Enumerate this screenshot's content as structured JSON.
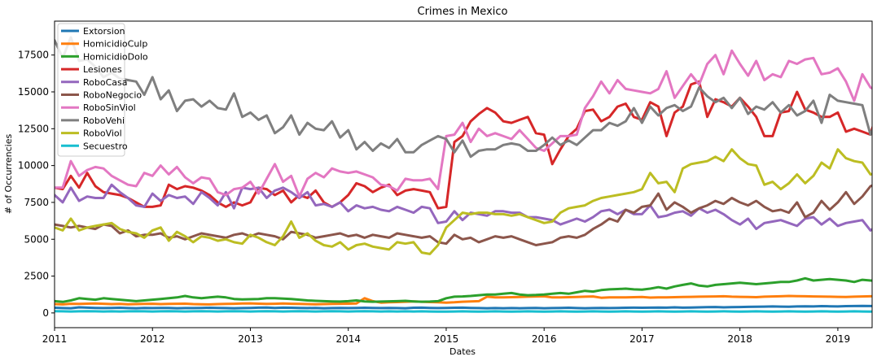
{
  "chart_data": {
    "type": "line",
    "title": "Crimes in Mexico",
    "xlabel": "Dates",
    "ylabel": "# of Occurrencies",
    "x_start": 2011.0,
    "x_step_months": 1,
    "xlim": [
      2011.0,
      2019.35
    ],
    "ylim": [
      -1000,
      19800
    ],
    "xticks": [
      2011,
      2012,
      2013,
      2014,
      2015,
      2016,
      2017,
      2018,
      2019
    ],
    "xtick_labels": [
      "2011",
      "2012",
      "2013",
      "2014",
      "2015",
      "2016",
      "2017",
      "2018",
      "2019"
    ],
    "yticks": [
      0,
      2500,
      5000,
      7500,
      10000,
      12500,
      15000,
      17500
    ],
    "ytick_labels": [
      "0",
      "2500",
      "5000",
      "7500",
      "10000",
      "12500",
      "15000",
      "17500"
    ],
    "grid": false,
    "legend_position": "top-left",
    "series": [
      {
        "name": "Extorsion",
        "color": "#1f77b4",
        "values": [
          350,
          330,
          320,
          380,
          360,
          340,
          330,
          340,
          350,
          330,
          320,
          340,
          330,
          340,
          340,
          320,
          330,
          330,
          340,
          350,
          340,
          330,
          320,
          330,
          340,
          360,
          370,
          340,
          360,
          350,
          340,
          330,
          340,
          320,
          330,
          340,
          330,
          340,
          350,
          340,
          330,
          340,
          330,
          320,
          350,
          360,
          340,
          330,
          340,
          350,
          360,
          340,
          330,
          320,
          330,
          320,
          330,
          320,
          330,
          340,
          320,
          330,
          340,
          350,
          330,
          320,
          330,
          340,
          330,
          340,
          350,
          360,
          350,
          360,
          370,
          360,
          380,
          360,
          370,
          380,
          390,
          400,
          380,
          390,
          400,
          410,
          420,
          430,
          440,
          430,
          420,
          440,
          450,
          440,
          460,
          450,
          440,
          460,
          470,
          480,
          470,
          480,
          520,
          560,
          540,
          550,
          530,
          580,
          570,
          560
        ]
      },
      {
        "name": "HomicidioCulp",
        "color": "#ff7f0e",
        "values": [
          600,
          580,
          620,
          610,
          630,
          640,
          620,
          600,
          610,
          590,
          600,
          610,
          620,
          600,
          610,
          620,
          630,
          600,
          590,
          580,
          600,
          610,
          620,
          640,
          650,
          630,
          610,
          620,
          640,
          620,
          610,
          600,
          590,
          600,
          610,
          620,
          630,
          640,
          1000,
          800,
          700,
          720,
          740,
          760,
          780,
          760,
          740,
          720,
          700,
          720,
          760,
          780,
          800,
          1100,
          1050,
          1060,
          1070,
          1080,
          1100,
          1120,
          1130,
          1050,
          1060,
          1070,
          1080,
          1100,
          1120,
          1030,
          1050,
          1060,
          1050,
          1070,
          1080,
          1040,
          1050,
          1060,
          1070,
          1080,
          1090,
          1100,
          1110,
          1120,
          1130,
          1100,
          1090,
          1080,
          1070,
          1100,
          1120,
          1130,
          1150,
          1140,
          1130,
          1120,
          1110,
          1100,
          1090,
          1080,
          1100,
          1120,
          1130,
          1150,
          1140,
          1130,
          1120,
          1110,
          1200,
          1220,
          1240,
          1250
        ]
      },
      {
        "name": "HomicidioDolo",
        "color": "#2ca02c",
        "values": [
          800,
          750,
          850,
          1000,
          950,
          900,
          1000,
          950,
          900,
          850,
          800,
          850,
          900,
          950,
          1000,
          1050,
          1150,
          1050,
          1000,
          1050,
          1100,
          1050,
          950,
          920,
          930,
          950,
          1000,
          1000,
          970,
          950,
          900,
          850,
          820,
          800,
          780,
          770,
          800,
          850,
          780,
          760,
          770,
          790,
          800,
          820,
          780,
          760,
          770,
          800,
          1000,
          1100,
          1120,
          1150,
          1200,
          1250,
          1250,
          1300,
          1350,
          1250,
          1200,
          1220,
          1250,
          1300,
          1350,
          1300,
          1400,
          1500,
          1450,
          1550,
          1600,
          1620,
          1650,
          1600,
          1580,
          1650,
          1750,
          1650,
          1800,
          1900,
          2000,
          1850,
          1800,
          1900,
          1950,
          2000,
          2050,
          2000,
          1950,
          2000,
          2050,
          2100,
          2100,
          2200,
          2350,
          2200,
          2250,
          2300,
          2250,
          2200,
          2100,
          2250,
          2200,
          2150,
          2200,
          2250,
          2150,
          2100,
          2150,
          2200
        ]
      },
      {
        "name": "Lesiones",
        "color": "#d62728",
        "values": [
          8500,
          8400,
          9300,
          8500,
          9500,
          8600,
          8200,
          8100,
          8000,
          7800,
          7500,
          7200,
          7200,
          7300,
          8700,
          8400,
          8600,
          8500,
          8300,
          8000,
          7500,
          7200,
          7500,
          7300,
          7500,
          8500,
          8400,
          8000,
          8300,
          7500,
          8000,
          7800,
          8300,
          7500,
          7200,
          7500,
          8000,
          8800,
          8600,
          8200,
          8500,
          8700,
          8000,
          8300,
          8400,
          8300,
          8200,
          7100,
          7200,
          11600,
          12000,
          13000,
          13500,
          13900,
          13600,
          13000,
          12900,
          13100,
          13300,
          12200,
          12100,
          10100,
          11100,
          12000,
          12500,
          13700,
          13800,
          13000,
          13300,
          14000,
          14200,
          13300,
          13100,
          14300,
          14000,
          12000,
          13600,
          14000,
          15500,
          15700,
          13300,
          14500,
          14300,
          14000,
          14600,
          14000,
          13300,
          12000,
          12000,
          13600,
          13700,
          15000,
          13800,
          13600,
          13300,
          13300,
          13600,
          12300,
          12500,
          12300,
          12100,
          14000,
          13900,
          15200,
          15400,
          15300,
          15100,
          15000
        ]
      },
      {
        "name": "RoboCasa",
        "color": "#9467bd",
        "values": [
          8000,
          7500,
          8500,
          7600,
          7900,
          7800,
          7800,
          8700,
          8200,
          7800,
          7300,
          7200,
          8100,
          7600,
          8000,
          7800,
          7900,
          7400,
          8200,
          7800,
          7300,
          8200,
          7100,
          8500,
          8400,
          8500,
          7800,
          8300,
          8500,
          8200,
          7800,
          8200,
          7300,
          7400,
          7200,
          7500,
          6900,
          7300,
          7100,
          7200,
          7000,
          6900,
          7200,
          7000,
          6800,
          7200,
          7100,
          6100,
          6200,
          6900,
          6300,
          6800,
          6700,
          6600,
          6900,
          6900,
          6800,
          6800,
          6500,
          6500,
          6400,
          6300,
          6000,
          6200,
          6400,
          6200,
          6500,
          6900,
          7000,
          6700,
          7000,
          6700,
          6700,
          7300,
          6500,
          6600,
          6800,
          6900,
          6600,
          7100,
          6800,
          7000,
          6700,
          6300,
          6000,
          6400,
          5700,
          6100,
          6200,
          6300,
          6100,
          5900,
          6400,
          6500,
          6000,
          6400,
          5900,
          6100,
          6200,
          6300,
          5600,
          6000,
          6300,
          6000,
          5900,
          5900,
          5800,
          5800
        ]
      },
      {
        "name": "RoboNegocio",
        "color": "#8c564b",
        "values": [
          6000,
          5900,
          5800,
          5900,
          5800,
          5700,
          6000,
          5900,
          5400,
          5600,
          5200,
          5300,
          5300,
          5400,
          5100,
          5200,
          5000,
          5200,
          5400,
          5300,
          5200,
          5100,
          5300,
          5400,
          5200,
          5400,
          5300,
          5200,
          5000,
          5500,
          5400,
          5300,
          5100,
          5200,
          5300,
          5400,
          5200,
          5300,
          5100,
          5300,
          5200,
          5100,
          5400,
          5300,
          5200,
          5100,
          5200,
          4800,
          4700,
          5300,
          5000,
          5100,
          4800,
          5000,
          5200,
          5100,
          5200,
          5000,
          4800,
          4600,
          4700,
          4800,
          5100,
          5200,
          5100,
          5300,
          5700,
          6000,
          6400,
          6200,
          7000,
          6800,
          7200,
          7300,
          8100,
          7000,
          7500,
          7200,
          6800,
          7100,
          7300,
          7600,
          7400,
          7800,
          7500,
          7300,
          7600,
          7200,
          6900,
          7000,
          6800,
          7500,
          6500,
          6800,
          7600,
          7000,
          7500,
          8200,
          7400,
          7900,
          8600,
          8800,
          7500,
          8100,
          7800,
          8300,
          8000,
          8300
        ]
      },
      {
        "name": "RoboSinViol",
        "color": "#e377c2",
        "values": [
          8500,
          8500,
          10300,
          9300,
          9700,
          9900,
          9800,
          9300,
          9000,
          8700,
          8600,
          9500,
          9300,
          10000,
          9400,
          9900,
          9200,
          8800,
          9200,
          9100,
          8200,
          8000,
          8400,
          8500,
          8900,
          8100,
          9100,
          10100,
          8900,
          9300,
          7900,
          9100,
          9500,
          9200,
          9800,
          9600,
          9500,
          9600,
          9400,
          9200,
          8700,
          8600,
          8300,
          9100,
          9000,
          9000,
          9100,
          8400,
          12000,
          12100,
          12900,
          11600,
          12500,
          12000,
          12200,
          12000,
          11800,
          12400,
          11800,
          11200,
          11000,
          11500,
          12000,
          12000,
          12100,
          13900,
          14700,
          15700,
          14900,
          15800,
          15200,
          15100,
          15000,
          14900,
          15200,
          16400,
          14600,
          15400,
          16200,
          15500,
          16900,
          17500,
          16200,
          17800,
          16900,
          16100,
          17100,
          15800,
          16200,
          16000,
          17100,
          16900,
          17200,
          17300,
          16200,
          16300,
          16600,
          15700,
          14400,
          16200,
          15300,
          15000,
          15200,
          15000,
          15400,
          15800,
          16200,
          16300
        ]
      },
      {
        "name": "RoboVehi",
        "color": "#7f7f7f",
        "values": [
          18500,
          17300,
          18700,
          17100,
          17200,
          16700,
          16000,
          16300,
          15900,
          15800,
          15700,
          14800,
          16000,
          14500,
          15100,
          13700,
          14400,
          14500,
          14000,
          14400,
          13900,
          13800,
          14900,
          13300,
          13600,
          13100,
          13400,
          12200,
          12600,
          13400,
          12100,
          12900,
          12500,
          12400,
          13000,
          11900,
          12400,
          11100,
          11600,
          11000,
          11500,
          11200,
          11800,
          10900,
          10900,
          11400,
          11700,
          12000,
          11800,
          10900,
          11700,
          10600,
          11000,
          11100,
          11100,
          11400,
          11500,
          11400,
          11000,
          11000,
          11400,
          11900,
          11400,
          11700,
          11400,
          11900,
          12400,
          12400,
          12900,
          12700,
          13000,
          13900,
          12900,
          14000,
          13400,
          13900,
          14100,
          13700,
          14000,
          15300,
          14700,
          14300,
          14600,
          13900,
          14600,
          13500,
          14000,
          13800,
          14300,
          13600,
          14100,
          13400,
          13700,
          14400,
          12900,
          14800,
          14400,
          14300,
          14200,
          14100,
          12100,
          13400,
          12100,
          12900,
          13300,
          13100,
          13200,
          13300
        ]
      },
      {
        "name": "RoboViol",
        "color": "#bcbd22",
        "values": [
          5800,
          5600,
          6400,
          5600,
          5800,
          5900,
          6000,
          6100,
          5700,
          5500,
          5400,
          5100,
          5600,
          5800,
          4900,
          5500,
          5200,
          4800,
          5200,
          5100,
          4900,
          5000,
          4800,
          4700,
          5300,
          5100,
          4800,
          4600,
          5200,
          6200,
          5100,
          5400,
          4900,
          4600,
          4500,
          4800,
          4300,
          4600,
          4700,
          4500,
          4400,
          4300,
          4800,
          4700,
          4800,
          4100,
          4000,
          4600,
          5800,
          6300,
          6800,
          6700,
          6800,
          6800,
          6700,
          6700,
          6600,
          6700,
          6500,
          6300,
          6100,
          6200,
          6800,
          7100,
          7200,
          7300,
          7600,
          7800,
          7900,
          8000,
          8100,
          8200,
          8400,
          9500,
          8800,
          8900,
          8200,
          9800,
          10100,
          10200,
          10300,
          10600,
          10300,
          11100,
          10500,
          10100,
          10000,
          8700,
          8900,
          8400,
          8800,
          9400,
          8800,
          9300,
          10200,
          9800,
          11100,
          10500,
          10300,
          10200,
          9400,
          9500,
          9600,
          10200,
          10000,
          10100,
          10100,
          10200
        ]
      },
      {
        "name": "Secuestro",
        "color": "#17becf",
        "values": [
          120,
          110,
          100,
          110,
          120,
          110,
          100,
          110,
          100,
          110,
          120,
          110,
          100,
          110,
          120,
          110,
          100,
          110,
          120,
          110,
          100,
          110,
          120,
          110,
          100,
          110,
          120,
          110,
          100,
          110,
          120,
          110,
          100,
          110,
          120,
          110,
          100,
          110,
          120,
          110,
          100,
          110,
          100,
          110,
          100,
          110,
          100,
          90,
          90,
          100,
          110,
          100,
          90,
          100,
          110,
          100,
          90,
          100,
          110,
          100,
          90,
          100,
          110,
          100,
          90,
          100,
          110,
          100,
          90,
          100,
          110,
          100,
          90,
          100,
          110,
          100,
          90,
          100,
          110,
          100,
          90,
          100,
          110,
          100,
          90,
          100,
          110,
          100,
          90,
          100,
          110,
          100,
          90,
          100,
          110,
          100,
          90,
          100,
          110,
          100,
          90,
          100,
          110,
          100,
          90,
          100,
          100,
          100
        ]
      }
    ]
  }
}
